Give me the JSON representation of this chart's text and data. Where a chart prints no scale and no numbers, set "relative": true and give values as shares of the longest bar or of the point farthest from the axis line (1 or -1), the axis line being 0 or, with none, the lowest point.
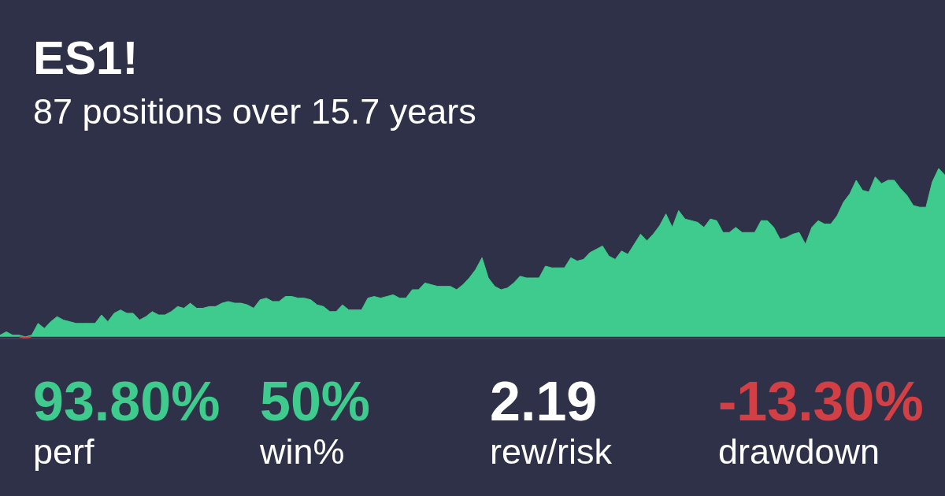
{
  "chart_data": [
    {
      "type": "area",
      "title": "ES1!",
      "subtitle": "87 positions over 15.7 years",
      "relative": true,
      "categories": [
        null,
        null,
        null,
        null,
        null,
        null,
        null,
        null,
        null,
        null,
        null,
        null,
        null,
        null,
        null,
        null,
        null,
        null,
        null,
        null,
        null,
        null,
        null,
        null,
        null,
        null,
        null,
        null,
        null,
        null,
        null,
        null,
        null,
        null,
        null,
        null,
        null,
        null,
        null,
        null,
        null,
        null,
        null,
        null,
        null,
        null,
        null,
        null,
        null,
        null,
        null,
        null,
        null,
        null,
        null,
        null,
        null,
        null,
        null,
        null,
        null,
        null,
        null,
        null,
        null,
        null,
        null,
        null,
        null,
        null,
        null,
        null,
        null,
        null,
        null,
        null,
        null,
        null,
        null,
        null,
        null,
        null,
        null,
        null,
        null,
        null,
        null,
        null,
        null,
        null,
        null,
        null,
        null,
        null,
        null,
        null,
        null,
        null,
        null,
        null,
        null,
        null,
        null,
        null,
        null,
        null,
        null,
        null,
        null,
        null,
        null,
        null,
        null,
        null,
        null,
        null,
        null,
        null,
        null,
        null,
        null,
        null,
        null,
        null,
        null,
        null,
        null,
        null,
        null,
        null,
        null,
        null,
        null,
        null,
        null,
        null,
        null,
        null,
        null,
        null,
        null,
        null,
        null,
        null,
        null,
        null,
        null,
        null,
        null,
        null
      ],
      "series": [
        {
          "color": "#3ecb8d",
          "values": [
            0.01,
            0.03,
            0.01,
            0.01,
            0,
            0.01,
            0.08,
            0.05,
            0.09,
            0.12,
            0.1,
            0.09,
            0.08,
            0.08,
            0.08,
            0.08,
            0.13,
            0.09,
            0.14,
            0.16,
            0.14,
            0.14,
            0.1,
            0.12,
            0.15,
            0.13,
            0.13,
            0.15,
            0.18,
            0.17,
            0.2,
            0.17,
            0.17,
            0.18,
            0.18,
            0.2,
            0.21,
            0.2,
            0.2,
            0.19,
            0.17,
            0.22,
            0.23,
            0.21,
            0.21,
            0.24,
            0.24,
            0.23,
            0.23,
            0.22,
            0.19,
            0.18,
            0.15,
            0.15,
            0.19,
            0.16,
            0.16,
            0.16,
            0.23,
            0.24,
            0.23,
            0.24,
            0.25,
            0.23,
            0.23,
            0.28,
            0.28,
            0.32,
            0.31,
            0.3,
            0.3,
            0.3,
            0.28,
            0.31,
            0.35,
            0.4,
            0.47,
            0.35,
            0.3,
            0.28,
            0.29,
            0.32,
            0.36,
            0.35,
            0.35,
            0.35,
            0.42,
            0.41,
            0.41,
            0.41,
            0.47,
            0.45,
            0.46,
            0.5,
            0.52,
            0.54,
            0.48,
            0.46,
            0.51,
            0.49,
            0.55,
            0.61,
            0.57,
            0.61,
            0.66,
            0.73,
            0.65,
            0.75,
            0.7,
            0.69,
            0.68,
            0.65,
            0.7,
            0.69,
            0.62,
            0.62,
            0.65,
            0.62,
            0.62,
            0.62,
            0.69,
            0.69,
            0.65,
            0.58,
            0.59,
            0.61,
            0.62,
            0.55,
            0.65,
            0.69,
            0.67,
            0.67,
            0.72,
            0.8,
            0.85,
            0.93,
            0.87,
            0.86,
            0.95,
            0.91,
            0.93,
            0.93,
            0.88,
            0.84,
            0.78,
            0.77,
            0.77,
            0.92,
            1,
            0.96
          ]
        },
        {
          "color": "#d23f45",
          "values": [
            null,
            null,
            null,
            0,
            -0.01,
            0,
            null,
            null,
            null,
            null,
            null,
            null,
            null,
            null,
            null,
            null,
            null,
            null,
            null,
            null,
            null,
            null,
            null,
            null,
            null,
            null,
            null,
            null,
            null,
            null,
            null,
            null,
            null,
            null,
            null,
            null,
            null,
            null,
            null,
            null,
            null,
            null,
            null,
            null,
            null,
            null,
            null,
            null,
            null,
            null,
            null,
            null,
            null,
            null,
            null,
            null,
            null,
            null,
            null,
            null,
            null,
            null,
            null,
            null,
            null,
            null,
            null,
            null,
            null,
            null,
            null,
            null,
            null,
            null,
            null,
            null,
            null,
            null,
            null,
            null,
            null,
            null,
            null,
            null,
            null,
            null,
            null,
            null,
            null,
            null,
            null,
            null,
            null,
            null,
            null,
            null,
            null,
            null,
            null,
            null,
            null,
            null,
            null,
            null,
            null,
            null,
            null,
            null,
            null,
            null,
            null,
            null,
            null,
            null,
            null,
            null,
            null,
            null,
            null,
            null,
            null,
            null,
            null,
            null,
            null,
            null,
            null,
            null,
            null,
            null,
            null,
            null,
            null,
            null,
            null,
            null,
            null,
            null,
            null,
            null,
            null,
            null,
            null,
            null,
            null,
            null,
            null,
            null,
            null,
            null
          ]
        }
      ]
    },
    {
      "type": "other",
      "annotations": [
        "93.80%",
        "perf",
        "50%",
        "win%",
        "2.19",
        "rew/risk",
        "-13.30%",
        "drawdown"
      ]
    }
  ]
}
